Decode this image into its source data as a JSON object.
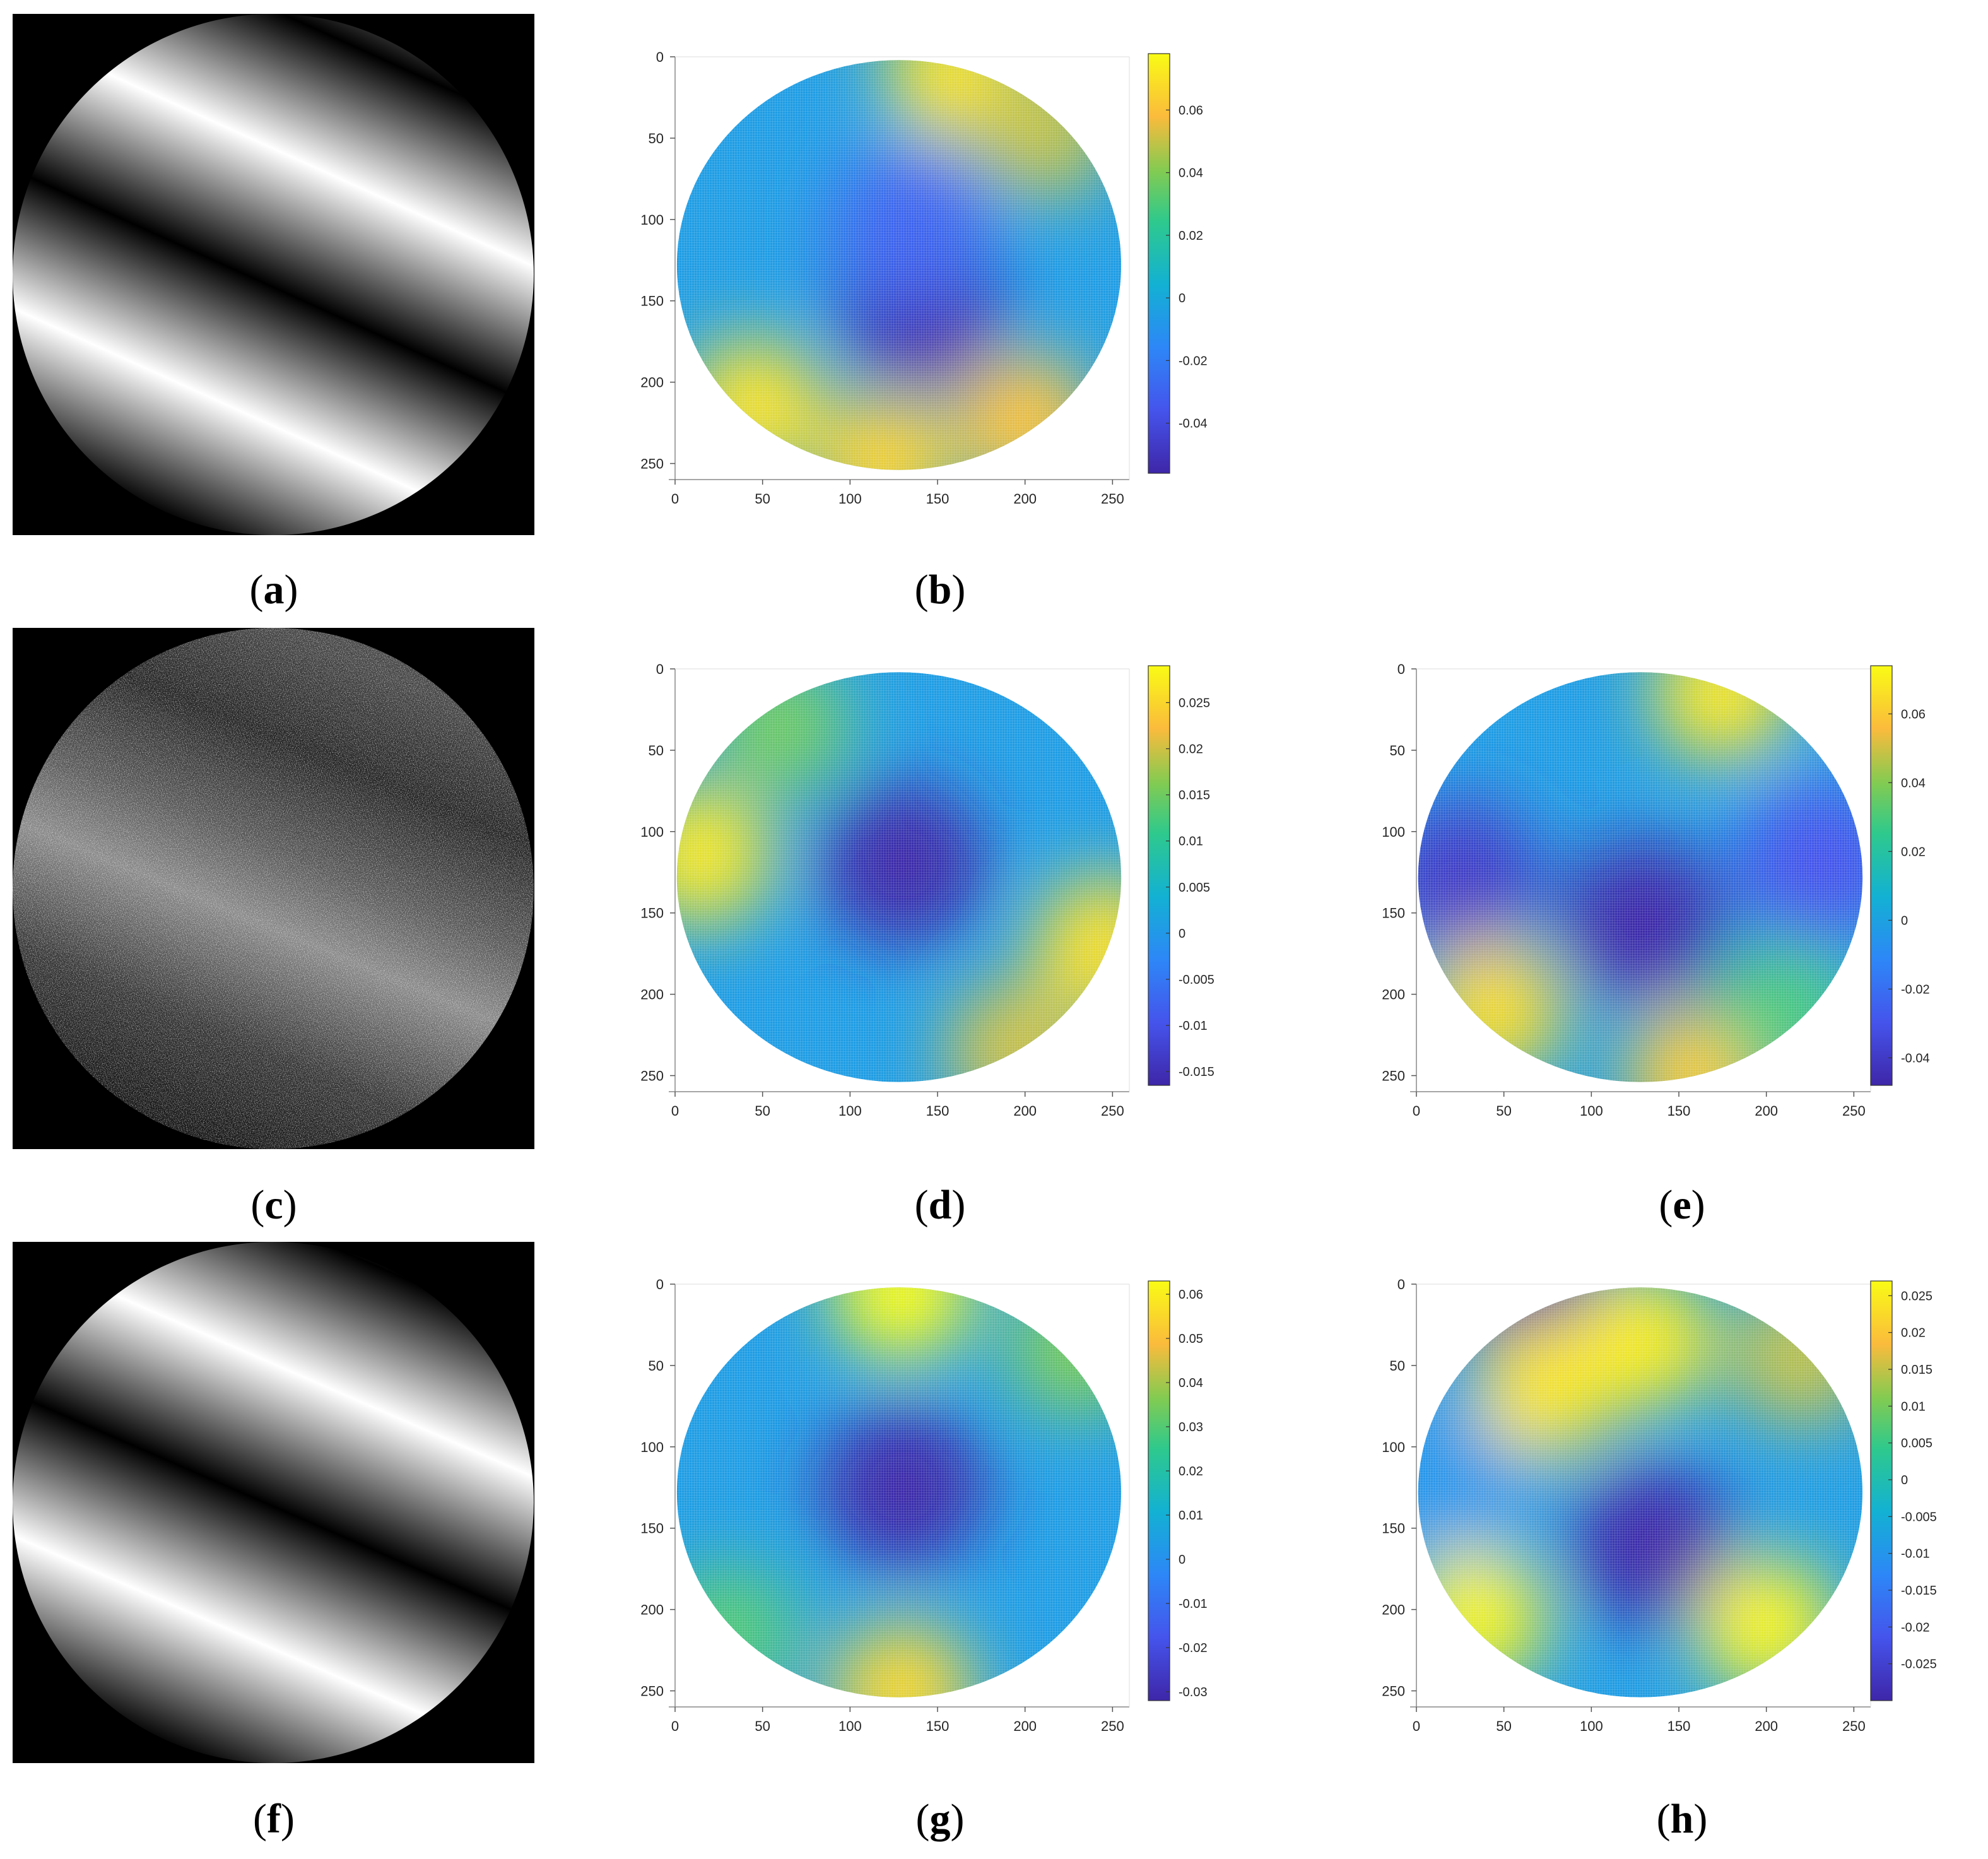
{
  "figure": {
    "captions": {
      "a": "a",
      "b": "b",
      "c": "c",
      "d": "d",
      "e": "e",
      "f": "f",
      "g": "g",
      "h": "h"
    }
  },
  "fringe_images": {
    "a": {
      "type": "simulated interferogram",
      "noise": false,
      "tilt": "diagonal fringes, 3 bright bands"
    },
    "c": {
      "type": "simulated interferogram",
      "noise": true,
      "tilt": "diagonal fringes, low contrast speckle"
    },
    "f": {
      "type": "simulated interferogram",
      "noise": false,
      "tilt": "diagonal fringes, 3 bright bands"
    }
  },
  "chart_data": [
    {
      "panel": "b",
      "type": "heatmap",
      "colormap": "parula",
      "x_ticks": [
        "0",
        "50",
        "100",
        "150",
        "200",
        "250"
      ],
      "y_ticks": [
        "0",
        "50",
        "100",
        "150",
        "200",
        "250"
      ],
      "xlim": [
        0,
        256
      ],
      "ylim": [
        0,
        256
      ],
      "colorbar": {
        "range": [
          -0.056,
          0.078
        ],
        "ticks": [
          "-0.04",
          "-0.02",
          "0",
          "0.02",
          "0.04",
          "0.06"
        ],
        "tick_values": [
          -0.04,
          -0.02,
          0,
          0.02,
          0.04,
          0.06
        ]
      },
      "surface_blobs": [
        {
          "x": 140,
          "y": 155,
          "value": -0.056
        },
        {
          "x": 135,
          "y": 105,
          "value": -0.03
        },
        {
          "x": 160,
          "y": 10,
          "value": 0.07
        },
        {
          "x": 210,
          "y": 45,
          "value": 0.05
        },
        {
          "x": 45,
          "y": 215,
          "value": 0.07
        },
        {
          "x": 200,
          "y": 225,
          "value": 0.06
        },
        {
          "x": 120,
          "y": 250,
          "value": 0.065
        }
      ]
    },
    {
      "panel": "d",
      "type": "heatmap",
      "colormap": "parula",
      "x_ticks": [
        "0",
        "50",
        "100",
        "150",
        "200",
        "250"
      ],
      "y_ticks": [
        "0",
        "50",
        "100",
        "150",
        "200",
        "250"
      ],
      "xlim": [
        0,
        256
      ],
      "ylim": [
        0,
        256
      ],
      "colorbar": {
        "range": [
          -0.0165,
          0.029
        ],
        "ticks": [
          "-0.015",
          "-0.01",
          "-0.005",
          "0",
          "0.005",
          "0.01",
          "0.015",
          "0.02",
          "0.025"
        ],
        "tick_values": [
          -0.015,
          -0.01,
          -0.005,
          0,
          0.005,
          0.01,
          0.015,
          0.02,
          0.025
        ]
      },
      "surface_blobs": [
        {
          "x": 130,
          "y": 120,
          "value": -0.0165
        },
        {
          "x": 15,
          "y": 115,
          "value": 0.027
        },
        {
          "x": 245,
          "y": 170,
          "value": 0.026
        },
        {
          "x": 195,
          "y": 235,
          "value": 0.02
        },
        {
          "x": 60,
          "y": 35,
          "value": 0.015
        }
      ]
    },
    {
      "panel": "e",
      "type": "heatmap",
      "colormap": "parula",
      "x_ticks": [
        "0",
        "50",
        "100",
        "150",
        "200",
        "250"
      ],
      "y_ticks": [
        "0",
        "50",
        "100",
        "150",
        "200",
        "250"
      ],
      "xlim": [
        0,
        256
      ],
      "ylim": [
        0,
        256
      ],
      "colorbar": {
        "range": [
          -0.048,
          0.074
        ],
        "ticks": [
          "-0.04",
          "-0.02",
          "0",
          "0.02",
          "0.04",
          "0.06"
        ],
        "tick_values": [
          -0.04,
          -0.02,
          0,
          0.02,
          0.04,
          0.06
        ]
      },
      "surface_blobs": [
        {
          "x": 130,
          "y": 155,
          "value": -0.048
        },
        {
          "x": 25,
          "y": 130,
          "value": -0.04
        },
        {
          "x": 230,
          "y": 120,
          "value": -0.03
        },
        {
          "x": 175,
          "y": 15,
          "value": 0.068
        },
        {
          "x": 45,
          "y": 210,
          "value": 0.065
        },
        {
          "x": 160,
          "y": 250,
          "value": 0.06
        },
        {
          "x": 210,
          "y": 210,
          "value": 0.03
        }
      ]
    },
    {
      "panel": "g",
      "type": "heatmap",
      "colormap": "parula",
      "x_ticks": [
        "0",
        "50",
        "100",
        "150",
        "200",
        "250"
      ],
      "y_ticks": [
        "0",
        "50",
        "100",
        "150",
        "200",
        "250"
      ],
      "xlim": [
        0,
        256
      ],
      "ylim": [
        0,
        256
      ],
      "colorbar": {
        "range": [
          -0.032,
          0.063
        ],
        "ticks": [
          "-0.03",
          "-0.02",
          "-0.01",
          "0",
          "0.01",
          "0.02",
          "0.03",
          "0.04",
          "0.05",
          "0.06"
        ],
        "tick_values": [
          -0.03,
          -0.02,
          -0.01,
          0,
          0.01,
          0.02,
          0.03,
          0.04,
          0.05,
          0.06
        ]
      },
      "surface_blobs": [
        {
          "x": 130,
          "y": 125,
          "value": -0.032
        },
        {
          "x": 130,
          "y": 5,
          "value": 0.063
        },
        {
          "x": 130,
          "y": 250,
          "value": 0.055
        },
        {
          "x": 230,
          "y": 40,
          "value": 0.035
        },
        {
          "x": 30,
          "y": 215,
          "value": 0.03
        }
      ]
    },
    {
      "panel": "h",
      "type": "heatmap",
      "colormap": "parula",
      "x_ticks": [
        "0",
        "50",
        "100",
        "150",
        "200",
        "250"
      ],
      "y_ticks": [
        "0",
        "50",
        "100",
        "150",
        "200",
        "250"
      ],
      "xlim": [
        0,
        256
      ],
      "ylim": [
        0,
        256
      ],
      "colorbar": {
        "range": [
          -0.03,
          0.027
        ],
        "ticks": [
          "-0.025",
          "-0.02",
          "-0.015",
          "-0.01",
          "-0.005",
          "0",
          "0.005",
          "0.01",
          "0.015",
          "0.02",
          "0.025"
        ],
        "tick_values": [
          -0.025,
          -0.02,
          -0.015,
          -0.01,
          -0.005,
          0,
          0.005,
          0.01,
          0.015,
          0.02,
          0.025
        ]
      },
      "surface_blobs": [
        {
          "x": 135,
          "y": 160,
          "value": -0.03
        },
        {
          "x": 70,
          "y": 15,
          "value": -0.03
        },
        {
          "x": 20,
          "y": 120,
          "value": -0.01
        },
        {
          "x": 130,
          "y": 35,
          "value": 0.025
        },
        {
          "x": 75,
          "y": 65,
          "value": 0.024
        },
        {
          "x": 35,
          "y": 205,
          "value": 0.026
        },
        {
          "x": 200,
          "y": 210,
          "value": 0.026
        },
        {
          "x": 220,
          "y": 45,
          "value": 0.015
        }
      ]
    }
  ]
}
